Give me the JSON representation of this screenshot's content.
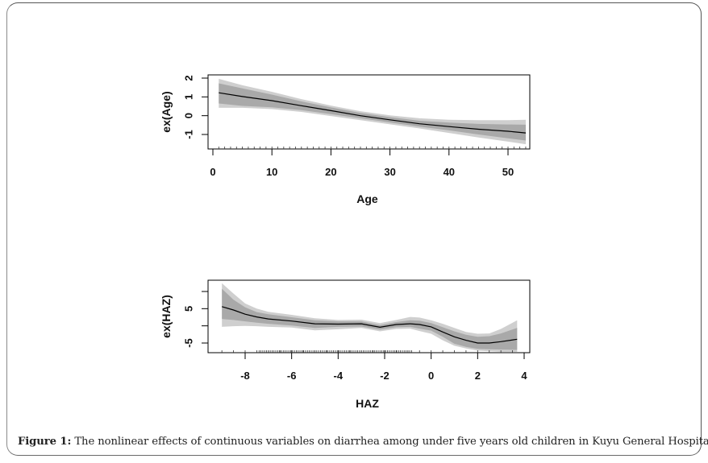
{
  "figure": {
    "caption_label": "Figure 1:",
    "caption_text": " The nonlinear effects of continuous variables on diarrhea among under five years old children in Kuyu General Hospital."
  },
  "colors": {
    "outer_band": "#cfcfcf",
    "inner_band": "#a9a9a9",
    "line": "#000000",
    "axis": "#000000"
  },
  "chart_data": [
    {
      "type": "line",
      "title": "",
      "xlabel": "Age",
      "ylabel": "ex(Age)",
      "xlim": [
        0,
        53
      ],
      "ylim": [
        -1.75,
        2.1
      ],
      "xticks": [
        0,
        10,
        20,
        30,
        40,
        50
      ],
      "xtick_labels": [
        "0",
        "10",
        "20",
        "30",
        "40",
        "50"
      ],
      "yticks": [
        -1,
        0,
        1,
        2
      ],
      "ytick_labels": [
        "-1",
        "0",
        "1",
        "2"
      ],
      "grid": false,
      "legend": "none",
      "x": [
        1,
        5,
        10,
        15,
        20,
        25,
        30,
        35,
        40,
        45,
        50,
        53
      ],
      "series": [
        {
          "name": "estimate",
          "values": [
            1.22,
            1.02,
            0.8,
            0.53,
            0.27,
            0.0,
            -0.22,
            -0.43,
            -0.58,
            -0.72,
            -0.83,
            -0.92
          ]
        },
        {
          "name": "inner_lower",
          "values": [
            0.65,
            0.52,
            0.45,
            0.3,
            0.08,
            -0.14,
            -0.36,
            -0.58,
            -0.78,
            -1.0,
            -1.2,
            -1.32
          ]
        },
        {
          "name": "inner_upper",
          "values": [
            1.72,
            1.45,
            1.12,
            0.76,
            0.44,
            0.15,
            -0.08,
            -0.27,
            -0.37,
            -0.44,
            -0.47,
            -0.48
          ]
        },
        {
          "name": "outer_lower",
          "values": [
            0.42,
            0.42,
            0.35,
            0.2,
            -0.02,
            -0.24,
            -0.46,
            -0.68,
            -0.92,
            -1.16,
            -1.38,
            -1.52
          ]
        },
        {
          "name": "outer_upper",
          "values": [
            1.96,
            1.62,
            1.27,
            0.88,
            0.54,
            0.24,
            0.02,
            -0.14,
            -0.22,
            -0.24,
            -0.24,
            -0.22
          ]
        }
      ],
      "rug": "dense ticks along x-axis at integer ages 1-53"
    },
    {
      "type": "line",
      "title": "",
      "xlabel": "HAZ",
      "ylabel": "ex(HAZ)",
      "xlim": [
        -9.5,
        4.2
      ],
      "ylim": [
        -8.0,
        13.0
      ],
      "xticks": [
        -8,
        -6,
        -4,
        -2,
        0,
        2,
        4
      ],
      "xtick_labels": [
        "-8",
        "-6",
        "-4",
        "-2",
        "0",
        "2",
        "4"
      ],
      "yticks": [
        -5,
        0,
        5,
        10
      ],
      "ytick_labels": [
        "-5",
        "",
        "5",
        ""
      ],
      "grid": false,
      "legend": "none",
      "x": [
        -9.0,
        -8.5,
        -8.0,
        -7.5,
        -7.0,
        -6.0,
        -5.0,
        -4.0,
        -3.0,
        -2.2,
        -1.5,
        -0.9,
        -0.5,
        0.0,
        0.5,
        1.0,
        1.5,
        2.0,
        2.5,
        3.0,
        3.7
      ],
      "series": [
        {
          "name": "estimate",
          "values": [
            5.6,
            4.6,
            3.4,
            2.6,
            2.0,
            1.4,
            0.6,
            0.5,
            0.6,
            -0.4,
            0.4,
            0.6,
            0.4,
            -0.3,
            -1.8,
            -3.2,
            -4.2,
            -5.0,
            -5.0,
            -4.6,
            -3.9
          ]
        },
        {
          "name": "inner_lower",
          "values": [
            2.0,
            1.7,
            1.3,
            0.9,
            0.6,
            0.1,
            -0.6,
            -0.3,
            -0.2,
            -1.1,
            -0.4,
            -0.3,
            -0.8,
            -1.4,
            -3.2,
            -5.2,
            -6.1,
            -6.7,
            -6.8,
            -6.9,
            -7.0
          ]
        },
        {
          "name": "inner_upper",
          "values": [
            10.8,
            7.6,
            5.4,
            4.0,
            3.4,
            2.5,
            1.6,
            1.3,
            1.3,
            0.2,
            1.1,
            1.6,
            1.5,
            0.8,
            -0.4,
            -1.6,
            -2.6,
            -3.2,
            -3.0,
            -2.2,
            -0.6
          ]
        },
        {
          "name": "outer_lower",
          "values": [
            -0.3,
            -0.1,
            0.0,
            -0.1,
            -0.3,
            -0.5,
            -1.3,
            -1.0,
            -0.6,
            -1.6,
            -0.9,
            -0.8,
            -1.5,
            -2.3,
            -4.2,
            -5.8,
            -6.6,
            -7.2,
            -7.4,
            -7.7,
            -7.7
          ]
        },
        {
          "name": "outer_upper",
          "values": [
            12.4,
            9.4,
            6.5,
            5.0,
            4.1,
            3.2,
            2.2,
            1.7,
            1.8,
            0.8,
            1.7,
            2.6,
            2.4,
            1.6,
            0.6,
            -0.6,
            -1.8,
            -2.3,
            -2.2,
            -0.9,
            1.6
          ]
        }
      ],
      "rug": "ticks along x-axis, dense between -7.5 and -0.8"
    }
  ]
}
